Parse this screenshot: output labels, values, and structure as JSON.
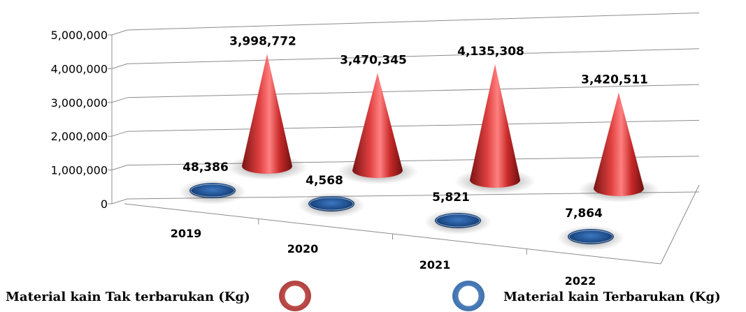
{
  "chart_data": {
    "type": "bar",
    "categories": [
      "2019",
      "2020",
      "2021",
      "2022"
    ],
    "series": [
      {
        "name": "Material kain Tak  terbarukan (Kg)",
        "values": [
          3998772,
          3470345,
          4135308,
          3420511
        ],
        "color": "#c0504d"
      },
      {
        "name": "Material kain Terbarukan (Kg)",
        "values": [
          48386,
          4568,
          5821,
          7864
        ],
        "color": "#4f81bd"
      }
    ],
    "value_labels": {
      "red": [
        "3,998,772",
        "3,470,345",
        "4,135,308",
        "3,420,511"
      ],
      "blue": [
        "48,386",
        "4,568",
        "5,821",
        "7,864"
      ]
    },
    "y_ticks": [
      "0",
      "1,000,000",
      "2,000,000",
      "3,000,000",
      "4,000,000",
      "5,000,000"
    ],
    "ylim": [
      0,
      5000000
    ],
    "grid": true,
    "legend_position": "bottom",
    "title": "",
    "xlabel": "",
    "ylabel": ""
  }
}
